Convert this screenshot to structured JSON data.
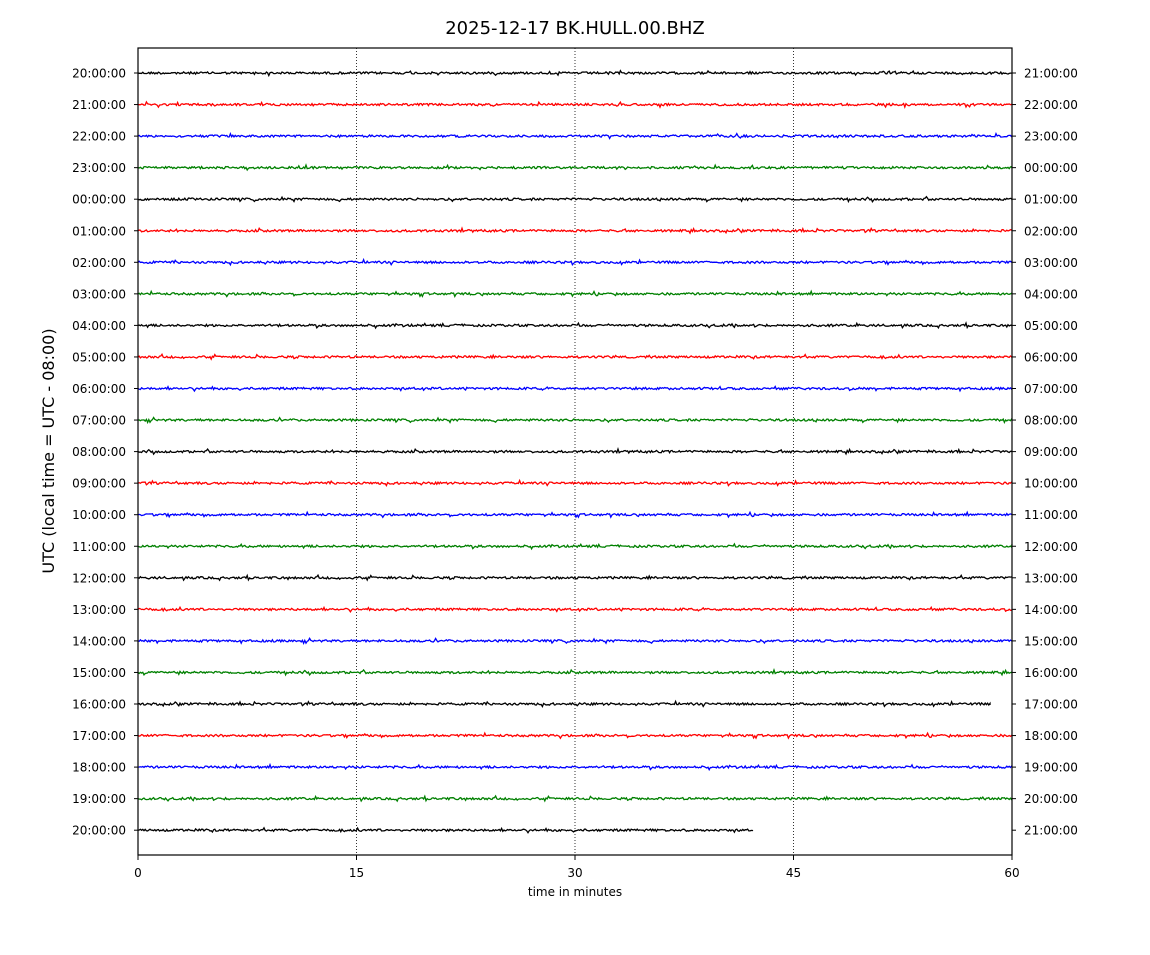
{
  "chart_data": {
    "type": "line",
    "title": "2025-12-17 BK.HULL.00.BHZ",
    "xlabel": "time in minutes",
    "ylabel": "UTC (local time = UTC - 08:00)",
    "xlim": [
      0,
      60
    ],
    "x_ticks": [
      0,
      15,
      30,
      45,
      60
    ],
    "x_tick_labels": [
      "0",
      "15",
      "30",
      "45",
      "60"
    ],
    "vertical_gridlines_at": [
      15,
      30,
      45
    ],
    "grid": "vertical dotted",
    "color_cycle": [
      "#000000",
      "#ff0000",
      "#0000ff",
      "#008000"
    ],
    "left_tick_labels": [
      "20:00:00",
      "21:00:00",
      "22:00:00",
      "23:00:00",
      "00:00:00",
      "01:00:00",
      "02:00:00",
      "03:00:00",
      "04:00:00",
      "05:00:00",
      "06:00:00",
      "07:00:00",
      "08:00:00",
      "09:00:00",
      "10:00:00",
      "11:00:00",
      "12:00:00",
      "13:00:00",
      "14:00:00",
      "15:00:00",
      "16:00:00",
      "17:00:00",
      "18:00:00",
      "19:00:00",
      "20:00:00"
    ],
    "right_tick_labels": [
      "21:00:00",
      "22:00:00",
      "23:00:00",
      "00:00:00",
      "01:00:00",
      "02:00:00",
      "03:00:00",
      "04:00:00",
      "05:00:00",
      "06:00:00",
      "07:00:00",
      "08:00:00",
      "09:00:00",
      "10:00:00",
      "11:00:00",
      "12:00:00",
      "13:00:00",
      "14:00:00",
      "15:00:00",
      "16:00:00",
      "17:00:00",
      "18:00:00",
      "19:00:00",
      "20:00:00",
      "21:00:00"
    ],
    "trace_end_minutes": [
      60,
      60,
      60,
      60,
      60,
      60,
      60,
      60,
      60,
      60,
      60,
      60,
      60,
      60,
      60,
      60,
      60,
      60,
      60,
      60,
      58.5,
      60,
      60,
      60,
      42.2
    ]
  }
}
